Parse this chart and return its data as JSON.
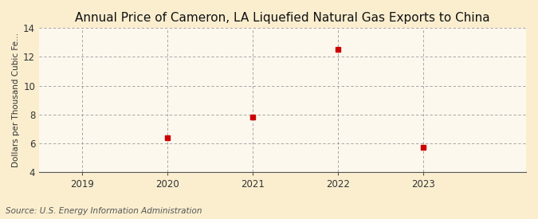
{
  "title": "Annual Price of Cameron, LA Liquefied Natural Gas Exports to China",
  "ylabel": "Dollars per Thousand Cubic Fe...",
  "source": "Source: U.S. Energy Information Administration",
  "x": [
    2020,
    2021,
    2022,
    2023
  ],
  "y": [
    6.38,
    7.84,
    12.54,
    5.74
  ],
  "xlim": [
    2018.5,
    2024.2
  ],
  "ylim": [
    4,
    14
  ],
  "yticks": [
    4,
    6,
    8,
    10,
    12,
    14
  ],
  "xticks": [
    2019,
    2020,
    2021,
    2022,
    2023
  ],
  "marker_color": "#cc0000",
  "marker": "s",
  "marker_size": 4,
  "bg_color": "#faeecf",
  "plot_bg_color": "#fdf8ee",
  "grid_color": "#999999",
  "title_fontsize": 11,
  "label_fontsize": 7.5,
  "tick_fontsize": 8.5,
  "source_fontsize": 7.5
}
